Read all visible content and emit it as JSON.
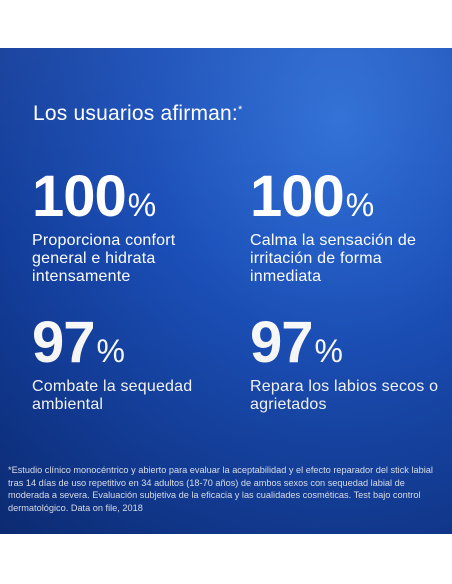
{
  "headline": {
    "text": "Los usuarios afirman:",
    "marker": "*"
  },
  "stats": [
    {
      "value": "100",
      "unit": "%",
      "description": "Proporciona confort general e hidrata intensamente"
    },
    {
      "value": "100",
      "unit": "%",
      "description": "Calma la sensación de irritación de forma inmediata"
    },
    {
      "value": "97",
      "unit": "%",
      "description": "Combate la sequedad ambiental"
    },
    {
      "value": "97",
      "unit": "%",
      "description": "Repara los labios secos o agrietados"
    }
  ],
  "footnote": "*Estudio clínico monocéntrico y abierto para evaluar la aceptabilidad y el efecto reparador del stick labial tras 14 días de uso repetitivo en 34 adultos (18-70 años) de ambos sexos con sequedad labial de moderada a severa. Evaluación subjetiva de la eficacia y las cualidades cosméticas. Test bajo control dermatológico. Data on file, 2018",
  "colors": {
    "background": "#1b4fb8",
    "text": "#ffffff"
  }
}
